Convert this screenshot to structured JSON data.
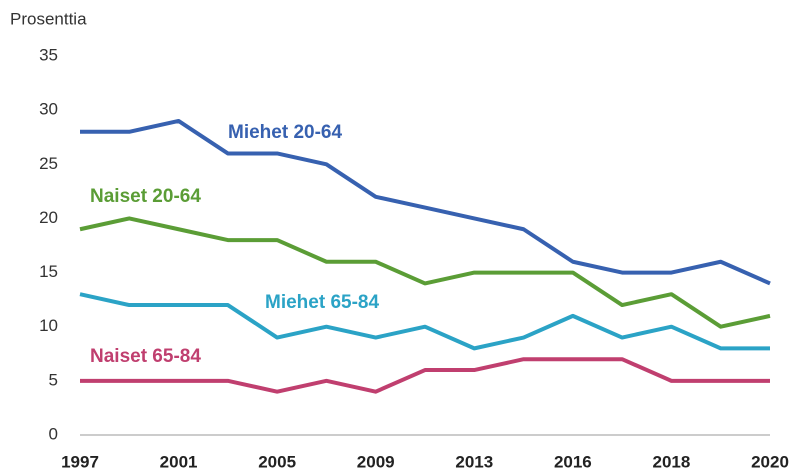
{
  "chart_data": {
    "type": "line",
    "y_axis_label": "Prosenttia",
    "categories": [
      "1997",
      null,
      "2001",
      null,
      "2005",
      null,
      "2009",
      null,
      "2013",
      null,
      "2016",
      null,
      "2018",
      null,
      "2020"
    ],
    "series": [
      {
        "name": "Miehet 20-64",
        "color": "#3761b0",
        "values": [
          28,
          28,
          29,
          26,
          26,
          25,
          22,
          21,
          20,
          19,
          16,
          15,
          15,
          16,
          14
        ]
      },
      {
        "name": "Naiset 20-64",
        "color": "#5b9d36",
        "values": [
          19,
          20,
          19,
          18,
          18,
          16,
          16,
          14,
          15,
          15,
          15,
          12,
          13,
          10,
          11
        ]
      },
      {
        "name": "Miehet 65-84",
        "color": "#2ba3c6",
        "values": [
          13,
          12,
          12,
          12,
          9,
          10,
          9,
          10,
          8,
          9,
          11,
          9,
          10,
          8,
          8
        ]
      },
      {
        "name": "Naiset 65-84",
        "color": "#c03f6f",
        "values": [
          5,
          5,
          5,
          5,
          4,
          5,
          4,
          6,
          6,
          7,
          7,
          7,
          5,
          5,
          5
        ]
      }
    ],
    "ylim": [
      0,
      35
    ],
    "yticks": [
      0,
      5,
      10,
      15,
      20,
      25,
      30,
      35
    ],
    "grid": false
  }
}
